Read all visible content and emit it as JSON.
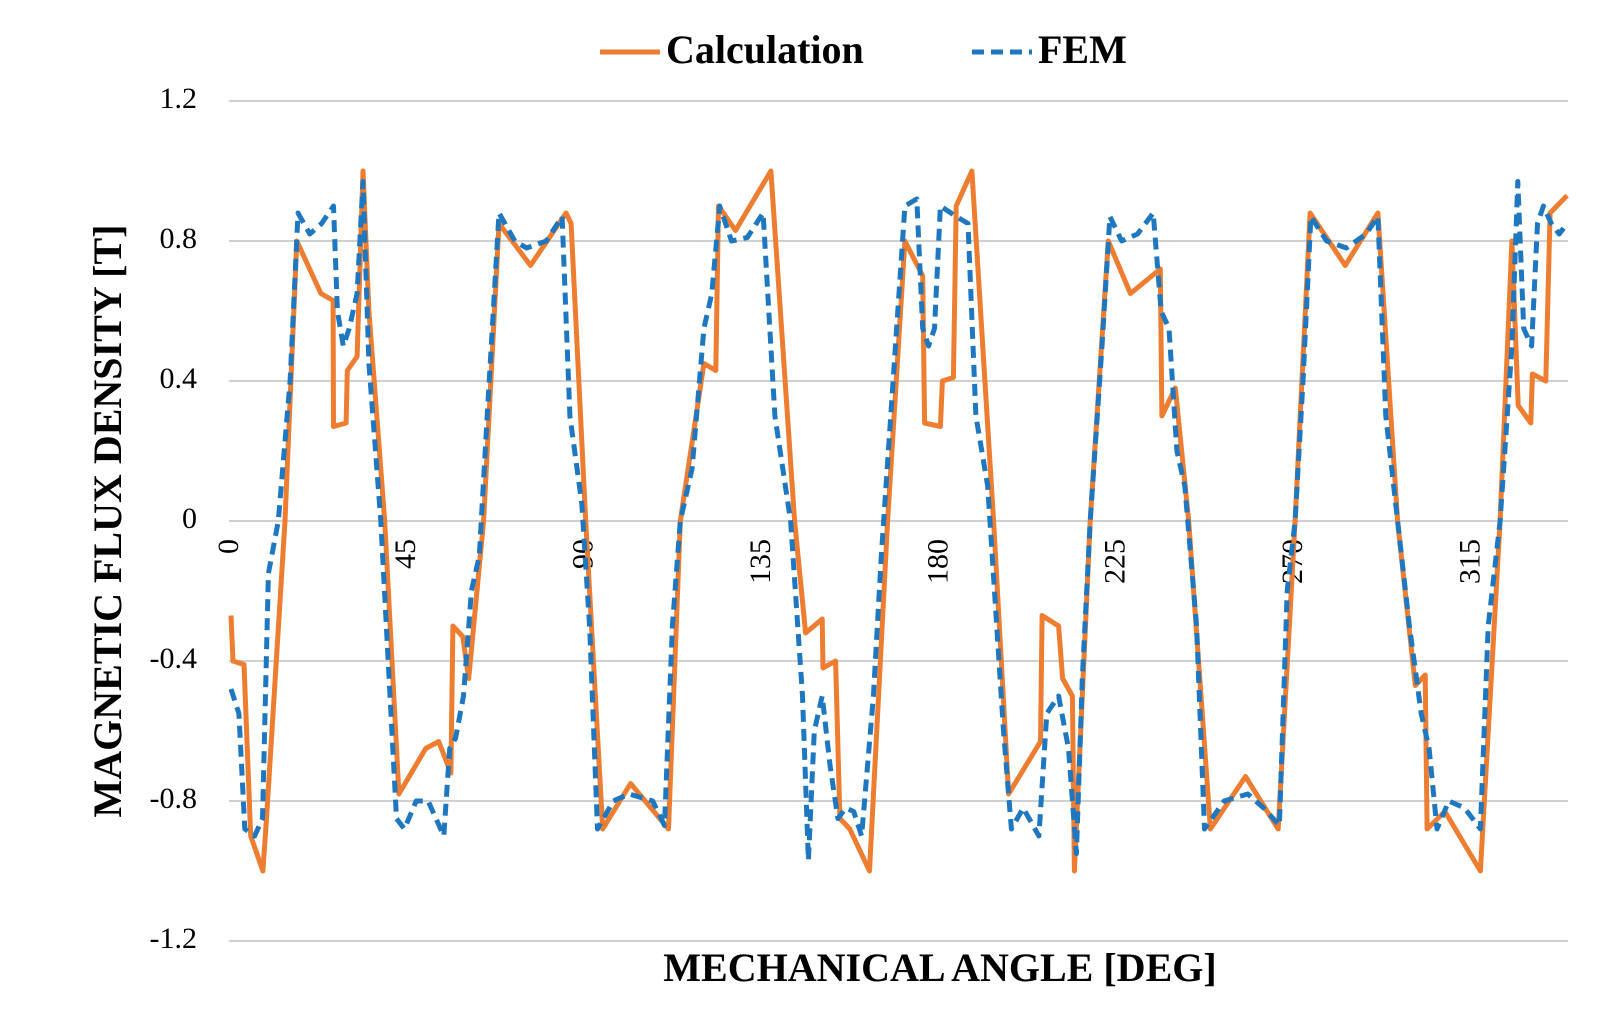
{
  "chart_data": {
    "type": "line",
    "xlabel": "MECHANICAL ANGLE [DEG]",
    "ylabel": "MAGNETIC FLUX DENSITY [T]",
    "xlim": [
      0,
      340
    ],
    "xticks": [
      0,
      45,
      90,
      135,
      180,
      225,
      270,
      315
    ],
    "ylim": [
      -1.2,
      1.2
    ],
    "yticks": [
      1.2,
      0.8,
      0.4,
      0,
      -0.4,
      -0.8,
      -1.2
    ],
    "grid": true,
    "legend": "top",
    "series": [
      {
        "name": "Calculation",
        "color": "#ed7d31",
        "dash": false,
        "x": [
          0,
          0.5,
          3.3,
          5,
          8.1,
          9,
          13.7,
          16.7,
          22.8,
          25.9,
          26,
          29.2,
          29.5,
          32,
          33.5,
          35,
          39,
          42.6,
          49.4,
          52.7,
          55.8,
          56.3,
          58.8,
          60.3,
          64.1,
          68,
          76,
          85,
          86.3,
          90,
          94.3,
          101.4,
          111,
          114,
          120,
          123,
          123.7,
          128,
          137,
          143,
          145.8,
          150,
          150.2,
          153.4,
          154.5,
          157,
          162,
          166.6,
          171,
          175.5,
          176,
          180,
          180.5,
          183.3,
          184,
          188,
          193.5,
          197.3,
          205.4,
          205.8,
          210,
          211,
          213.5,
          214,
          218,
          222.6,
          228.2,
          235.8,
          236.2,
          239.6,
          243,
          248.5,
          257.4,
          265.7,
          270,
          273.8,
          282.7,
          291,
          296,
          300.5,
          303,
          303.5,
          308,
          317,
          322,
          325,
          326.6,
          329.8,
          330.2,
          333.6,
          334.7,
          339
        ],
        "values": [
          -0.27,
          -0.4,
          -0.41,
          -0.9,
          -1.0,
          -0.85,
          0,
          0.8,
          0.65,
          0.63,
          0.27,
          0.28,
          0.43,
          0.47,
          1.0,
          0.6,
          0,
          -0.78,
          -0.65,
          -0.63,
          -0.72,
          -0.3,
          -0.33,
          -0.45,
          0,
          0.85,
          0.73,
          0.88,
          0.85,
          0,
          -0.88,
          -0.75,
          -0.88,
          0,
          0.45,
          0.43,
          0.9,
          0.83,
          1.0,
          0,
          -0.32,
          -0.28,
          -0.42,
          -0.4,
          -0.85,
          -0.88,
          -1.0,
          0,
          0.8,
          0.7,
          0.28,
          0.27,
          0.4,
          0.41,
          0.9,
          1.0,
          0,
          -0.78,
          -0.63,
          -0.27,
          -0.3,
          -0.45,
          -0.5,
          -1.0,
          0,
          0.8,
          0.65,
          0.72,
          0.3,
          0.38,
          0,
          -0.88,
          -0.73,
          -0.88,
          0,
          0.88,
          0.73,
          0.88,
          0,
          -0.47,
          -0.44,
          -0.88,
          -0.83,
          -1.0,
          0,
          0.8,
          0.33,
          0.28,
          0.42,
          0.4,
          0.88,
          0.93
        ]
      },
      {
        "name": "FEM",
        "color": "#1f77c0",
        "dash": true,
        "x": [
          0,
          2,
          3.5,
          6,
          8,
          9.5,
          12,
          15,
          17,
          20,
          23,
          26,
          27,
          28.5,
          30,
          32,
          33.5,
          35,
          38,
          42,
          44,
          47,
          50,
          54,
          55.5,
          57,
          59,
          61,
          63,
          65,
          68,
          72,
          75,
          80,
          84,
          86,
          89,
          91,
          93,
          97,
          101,
          107,
          110,
          112,
          114,
          117,
          120,
          122,
          124,
          127,
          131,
          135,
          138,
          142,
          145,
          146.5,
          148,
          150,
          152,
          154,
          156,
          158,
          160,
          163,
          165,
          168,
          171,
          174,
          175.5,
          177,
          178.5,
          180,
          184,
          187,
          189,
          192,
          196,
          198,
          201,
          205,
          207,
          210,
          212.5,
          214.5,
          216,
          218,
          221,
          223,
          226,
          230,
          234,
          236,
          238,
          240,
          242,
          245,
          247,
          252,
          258,
          262,
          266,
          268,
          270,
          272,
          274,
          278,
          283,
          288,
          291,
          293,
          296,
          299,
          302,
          304,
          306,
          309,
          313,
          317,
          319,
          322,
          325,
          326.5,
          328,
          330,
          331.5,
          333,
          335,
          337,
          339
        ],
        "values": [
          -0.48,
          -0.55,
          -0.88,
          -0.9,
          -0.85,
          -0.15,
          0,
          0.4,
          0.88,
          0.82,
          0.85,
          0.9,
          0.6,
          0.5,
          0.55,
          0.65,
          0.97,
          0.45,
          0,
          -0.85,
          -0.88,
          -0.8,
          -0.8,
          -0.9,
          -0.65,
          -0.62,
          -0.5,
          -0.2,
          -0.1,
          0.3,
          0.88,
          0.8,
          0.78,
          0.8,
          0.87,
          0.3,
          0.05,
          -0.3,
          -0.88,
          -0.8,
          -0.78,
          -0.8,
          -0.87,
          -0.3,
          0,
          0.15,
          0.55,
          0.65,
          0.9,
          0.8,
          0.81,
          0.88,
          0.3,
          0,
          -0.5,
          -0.97,
          -0.6,
          -0.5,
          -0.7,
          -0.85,
          -0.82,
          -0.83,
          -0.9,
          -0.5,
          -0.1,
          0.4,
          0.9,
          0.92,
          0.55,
          0.5,
          0.55,
          0.9,
          0.87,
          0.85,
          0.3,
          0.1,
          -0.6,
          -0.88,
          -0.82,
          -0.9,
          -0.55,
          -0.5,
          -0.65,
          -0.95,
          -0.45,
          0,
          0.5,
          0.87,
          0.8,
          0.82,
          0.88,
          0.6,
          0.55,
          0.2,
          0.1,
          -0.3,
          -0.88,
          -0.8,
          -0.78,
          -0.82,
          -0.87,
          -0.2,
          0,
          0.4,
          0.87,
          0.8,
          0.78,
          0.82,
          0.87,
          0.3,
          0,
          -0.3,
          -0.55,
          -0.65,
          -0.88,
          -0.8,
          -0.82,
          -0.88,
          -0.3,
          0,
          0.5,
          0.97,
          0.55,
          0.5,
          0.85,
          0.9,
          0.85,
          0.82,
          0.85
        ]
      }
    ]
  }
}
